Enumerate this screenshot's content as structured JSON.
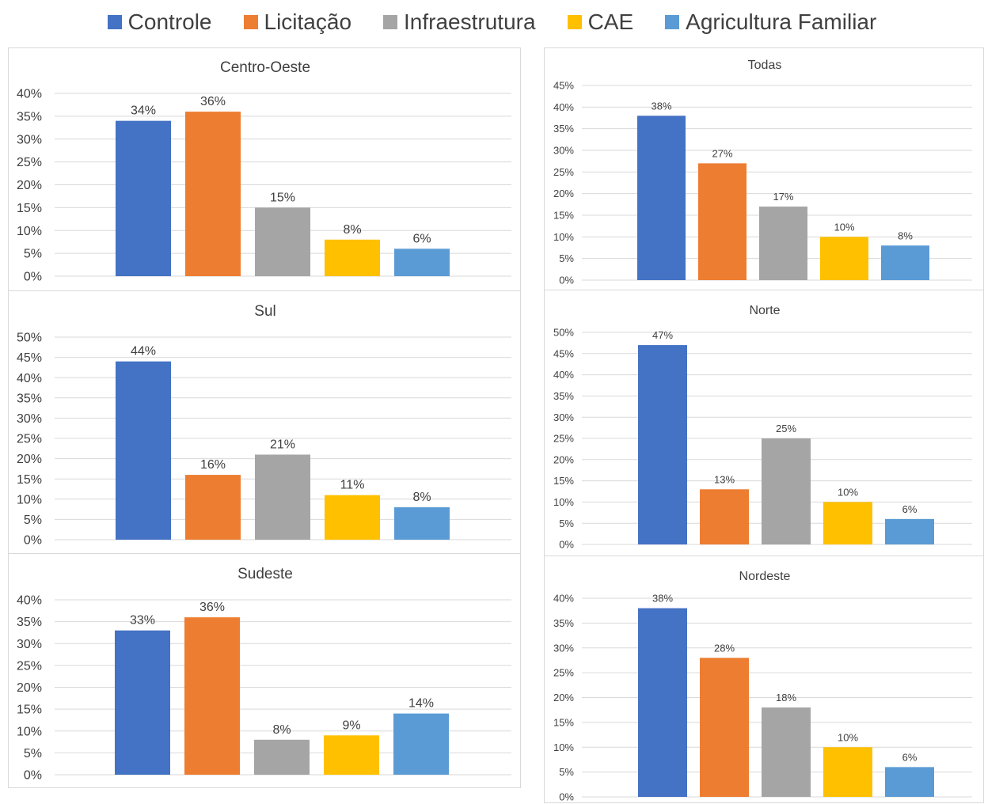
{
  "legend": [
    {
      "label": "Controle",
      "color": "#4472C4"
    },
    {
      "label": "Licitação",
      "color": "#ED7D31"
    },
    {
      "label": "Infraestrutura",
      "color": "#A5A5A5"
    },
    {
      "label": "CAE",
      "color": "#FFC000"
    },
    {
      "label": "Agricultura Familiar",
      "color": "#5B9BD5"
    }
  ],
  "chart_data": [
    {
      "id": "centro-oeste",
      "type": "bar",
      "title": "Centro-Oeste",
      "categories": [
        "Controle",
        "Licitação",
        "Infraestrutura",
        "CAE",
        "Agricultura Familiar"
      ],
      "values": [
        34,
        36,
        15,
        8,
        6
      ],
      "data_labels": [
        "34%",
        "36%",
        "15%",
        "8%",
        "6%"
      ],
      "ylim": [
        0,
        40
      ],
      "ytick_step": 5,
      "grid": true
    },
    {
      "id": "sul",
      "type": "bar",
      "title": "Sul",
      "categories": [
        "Controle",
        "Licitação",
        "Infraestrutura",
        "CAE",
        "Agricultura Familiar"
      ],
      "values": [
        44,
        16,
        21,
        11,
        8
      ],
      "data_labels": [
        "44%",
        "16%",
        "21%",
        "11%",
        "8%"
      ],
      "ylim": [
        0,
        50
      ],
      "ytick_step": 5,
      "grid": true
    },
    {
      "id": "sudeste",
      "type": "bar",
      "title": "Sudeste",
      "categories": [
        "Controle",
        "Licitação",
        "Infraestrutura",
        "CAE",
        "Agricultura Familiar"
      ],
      "values": [
        33,
        36,
        8,
        9,
        14
      ],
      "data_labels": [
        "33%",
        "36%",
        "8%",
        "9%",
        "14%"
      ],
      "ylim": [
        0,
        40
      ],
      "ytick_step": 5,
      "grid": true
    },
    {
      "id": "todas",
      "type": "bar",
      "title": "Todas",
      "categories": [
        "Controle",
        "Licitação",
        "Infraestrutura",
        "CAE",
        "Agricultura Familiar"
      ],
      "values": [
        38,
        27,
        17,
        10,
        8
      ],
      "data_labels": [
        "38%",
        "27%",
        "17%",
        "10%",
        "8%"
      ],
      "ylim": [
        0,
        45
      ],
      "ytick_step": 5,
      "grid": true
    },
    {
      "id": "norte",
      "type": "bar",
      "title": "Norte",
      "categories": [
        "Controle",
        "Licitação",
        "Infraestrutura",
        "CAE",
        "Agricultura Familiar"
      ],
      "values": [
        47,
        13,
        25,
        10,
        6
      ],
      "data_labels": [
        "47%",
        "13%",
        "25%",
        "10%",
        "6%"
      ],
      "ylim": [
        0,
        50
      ],
      "ytick_step": 5,
      "grid": true
    },
    {
      "id": "nordeste",
      "type": "bar",
      "title": "Nordeste",
      "categories": [
        "Controle",
        "Licitação",
        "Infraestrutura",
        "CAE",
        "Agricultura Familiar"
      ],
      "values": [
        38,
        28,
        18,
        10,
        6
      ],
      "data_labels": [
        "38%",
        "28%",
        "18%",
        "10%",
        "6%"
      ],
      "ylim": [
        0,
        40
      ],
      "ytick_step": 5,
      "grid": true
    }
  ]
}
